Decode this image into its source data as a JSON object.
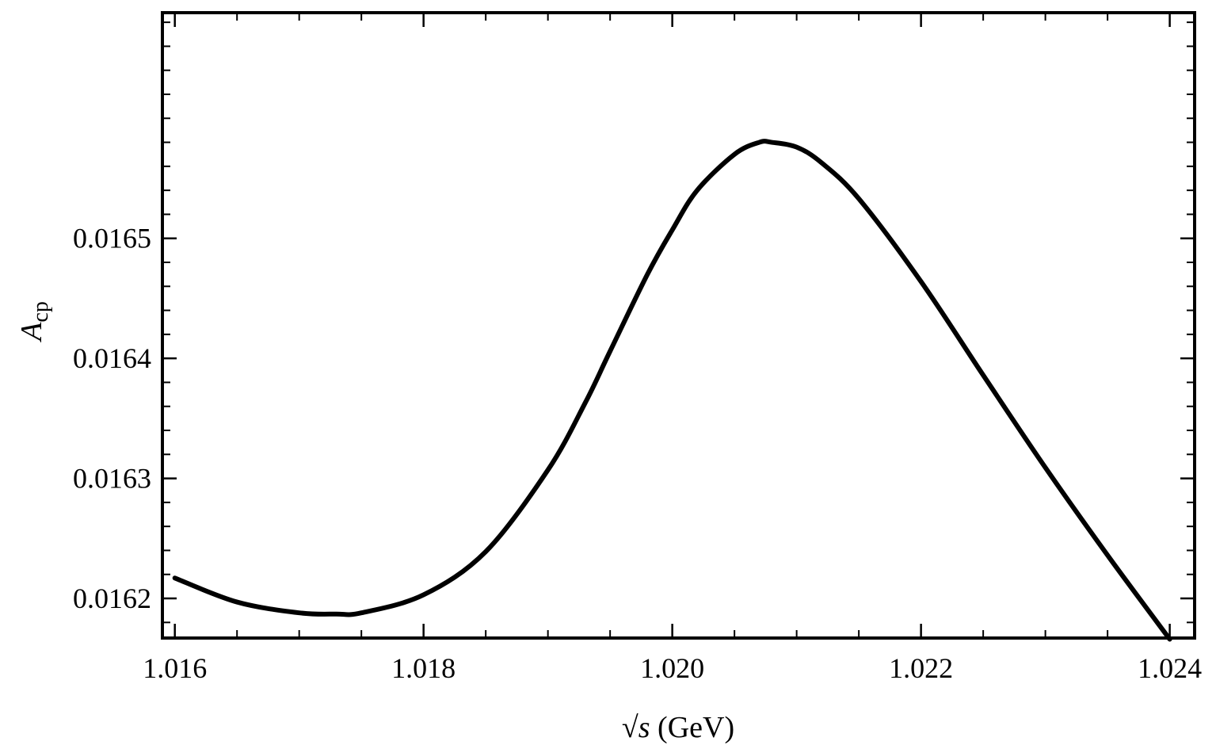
{
  "chart_data": {
    "type": "line",
    "xlabel": "√s (GeV)",
    "xlabel_parts": {
      "sqrt": "√",
      "var": "s",
      "unit": " (GeV)"
    },
    "ylabel": "Acp",
    "ylabel_parts": {
      "main": "A",
      "sub": "cp"
    },
    "xlim": [
      1.0159,
      1.0242
    ],
    "ylim": [
      0.016167,
      0.016688
    ],
    "x_ticks": [
      1.016,
      1.018,
      1.02,
      1.022,
      1.024
    ],
    "x_tick_labels": [
      "1.016",
      "1.018",
      "1.020",
      "1.022",
      "1.024"
    ],
    "y_ticks": [
      0.0162,
      0.0163,
      0.0164,
      0.0165
    ],
    "y_tick_labels": [
      "0.0162",
      "0.0163",
      "0.0164",
      "0.0165"
    ],
    "grid": false,
    "legend": "none",
    "series": [
      {
        "color": "#000000",
        "x": [
          1.016,
          1.0165,
          1.017,
          1.0173,
          1.0175,
          1.018,
          1.0185,
          1.019,
          1.0193,
          1.0195,
          1.0198,
          1.02,
          1.0202,
          1.0205,
          1.0207,
          1.0208,
          1.021,
          1.0212,
          1.0215,
          1.022,
          1.0225,
          1.023,
          1.0235,
          1.024
        ],
        "y": [
          0.016217,
          0.016197,
          0.016188,
          0.016187,
          0.016188,
          0.016203,
          0.016239,
          0.016307,
          0.016363,
          0.016406,
          0.01647,
          0.016507,
          0.01654,
          0.01657,
          0.01658,
          0.01658,
          0.016576,
          0.016563,
          0.016533,
          0.016464,
          0.016386,
          0.016309,
          0.016236,
          0.016166
        ]
      }
    ]
  }
}
